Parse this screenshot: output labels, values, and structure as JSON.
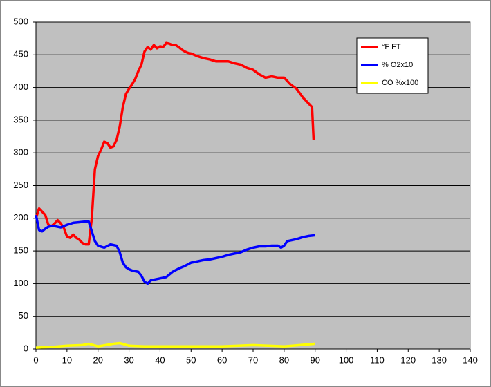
{
  "chart_data": {
    "type": "line",
    "xlim": [
      0,
      140
    ],
    "xticks": [
      0,
      10,
      20,
      30,
      40,
      50,
      60,
      70,
      80,
      90,
      100,
      110,
      120,
      130,
      140
    ],
    "ylim": [
      0,
      500
    ],
    "yticks": [
      0,
      50,
      100,
      150,
      200,
      250,
      300,
      350,
      400,
      450,
      500
    ],
    "grid": true,
    "legend": "upper right",
    "background": "#c0c0c0",
    "series": [
      {
        "name": "°F FT",
        "color": "#ff0000",
        "x": [
          0,
          1,
          2,
          3,
          4,
          5,
          6,
          7,
          8,
          9,
          10,
          11,
          12,
          13,
          14,
          15,
          16,
          17,
          18,
          19,
          20,
          21,
          22,
          23,
          24,
          25,
          26,
          27,
          28,
          29,
          30,
          31,
          32,
          33,
          34,
          35,
          36,
          37,
          38,
          39,
          40,
          41,
          42,
          43,
          44,
          45,
          46,
          47,
          48,
          49,
          50,
          52,
          54,
          56,
          58,
          60,
          62,
          64,
          66,
          68,
          70,
          72,
          74,
          76,
          78,
          80,
          82,
          84,
          86,
          88,
          89,
          89.5
        ],
        "values": [
          200,
          215,
          210,
          205,
          190,
          188,
          192,
          197,
          192,
          185,
          172,
          170,
          175,
          170,
          167,
          162,
          160,
          160,
          200,
          275,
          295,
          305,
          317,
          315,
          308,
          310,
          320,
          340,
          370,
          390,
          398,
          405,
          413,
          425,
          435,
          455,
          462,
          458,
          465,
          460,
          463,
          462,
          468,
          467,
          465,
          465,
          462,
          458,
          455,
          453,
          452,
          448,
          445,
          443,
          440,
          440,
          440,
          437,
          435,
          430,
          427,
          420,
          415,
          417,
          415,
          415,
          405,
          398,
          385,
          375,
          370,
          320
        ]
      },
      {
        "name": "% O2x10",
        "color": "#0000ff",
        "x": [
          0,
          1,
          2,
          3,
          4,
          5,
          6,
          8,
          10,
          12,
          14,
          16,
          17,
          18,
          19,
          20,
          22,
          24,
          26,
          27,
          28,
          29,
          30,
          31,
          33,
          34,
          35,
          36,
          37,
          38,
          40,
          42,
          44,
          46,
          48,
          50,
          52,
          54,
          56,
          58,
          60,
          62,
          64,
          66,
          68,
          70,
          72,
          74,
          76,
          78,
          79,
          80,
          81,
          84,
          86,
          88,
          90
        ],
        "values": [
          205,
          182,
          180,
          184,
          187,
          188,
          188,
          186,
          190,
          193,
          194,
          195,
          195,
          180,
          165,
          158,
          155,
          160,
          158,
          148,
          132,
          125,
          122,
          120,
          118,
          112,
          103,
          100,
          105,
          106,
          108,
          110,
          118,
          123,
          127,
          132,
          134,
          136,
          137,
          139,
          141,
          144,
          146,
          148,
          152,
          155,
          157,
          157,
          158,
          158,
          155,
          158,
          165,
          168,
          171,
          173,
          174
        ]
      },
      {
        "name": "CO %x100",
        "color": "#ffff00",
        "x": [
          0,
          5,
          10,
          15,
          17,
          20,
          25,
          27,
          30,
          35,
          40,
          50,
          60,
          70,
          75,
          80,
          85,
          90
        ],
        "values": [
          2,
          3,
          5,
          6,
          8,
          4,
          8,
          9,
          5,
          4,
          4,
          4,
          4,
          6,
          5,
          4,
          6,
          8
        ]
      }
    ]
  }
}
